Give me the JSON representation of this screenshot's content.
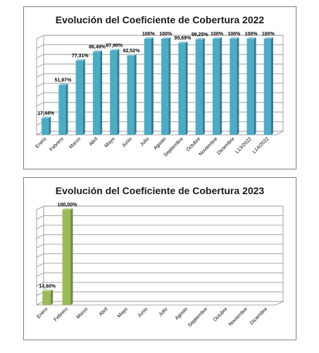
{
  "colors": {
    "series_2022": "#4bacc6",
    "series_2023": "#9bbb59"
  },
  "chart_data": [
    {
      "type": "bar",
      "title": "Evolución del Coeficiente de Cobertura 2022",
      "categories": [
        "Enero",
        "Febrero",
        "Marzo",
        "Abril",
        "Mayo",
        "Junio",
        "Julio",
        "Agosto",
        "Septiembre",
        "Octubre",
        "Noviembre",
        "Diciembre",
        "L13/2022",
        "L14/2022"
      ],
      "values": [
        17.44,
        51.97,
        77.31,
        86.49,
        87.9,
        82.52,
        100,
        100,
        95.69,
        99.25,
        100,
        100,
        100,
        100
      ],
      "data_labels": [
        "17,44%",
        "51,97%",
        "77,31%",
        "86,49%",
        "87,90%",
        "82,52%",
        "100%",
        "100%",
        "95,69%",
        "99,25%",
        "100%",
        "100%",
        "100%",
        "100%"
      ],
      "ylim": [
        0,
        100
      ],
      "grid": true,
      "legend": "none",
      "xlabel": "",
      "ylabel": ""
    },
    {
      "type": "bar",
      "title": "Evolución del Coeficiente de Cobertura 2023",
      "categories": [
        "Enero",
        "Febrero",
        "Marzo",
        "Abril",
        "Mayo",
        "Junio",
        "Julio",
        "Agosto",
        "Septiembre",
        "Octubre",
        "Noviembre",
        "Diciembre"
      ],
      "values": [
        14.6,
        100.0,
        null,
        null,
        null,
        null,
        null,
        null,
        null,
        null,
        null,
        null
      ],
      "data_labels": [
        "14,60%",
        "100,00%",
        "",
        "",
        "",
        "",
        "",
        "",
        "",
        "",
        "",
        ""
      ],
      "ylim": [
        0,
        100
      ],
      "grid": true,
      "legend": "none",
      "xlabel": "",
      "ylabel": ""
    }
  ]
}
